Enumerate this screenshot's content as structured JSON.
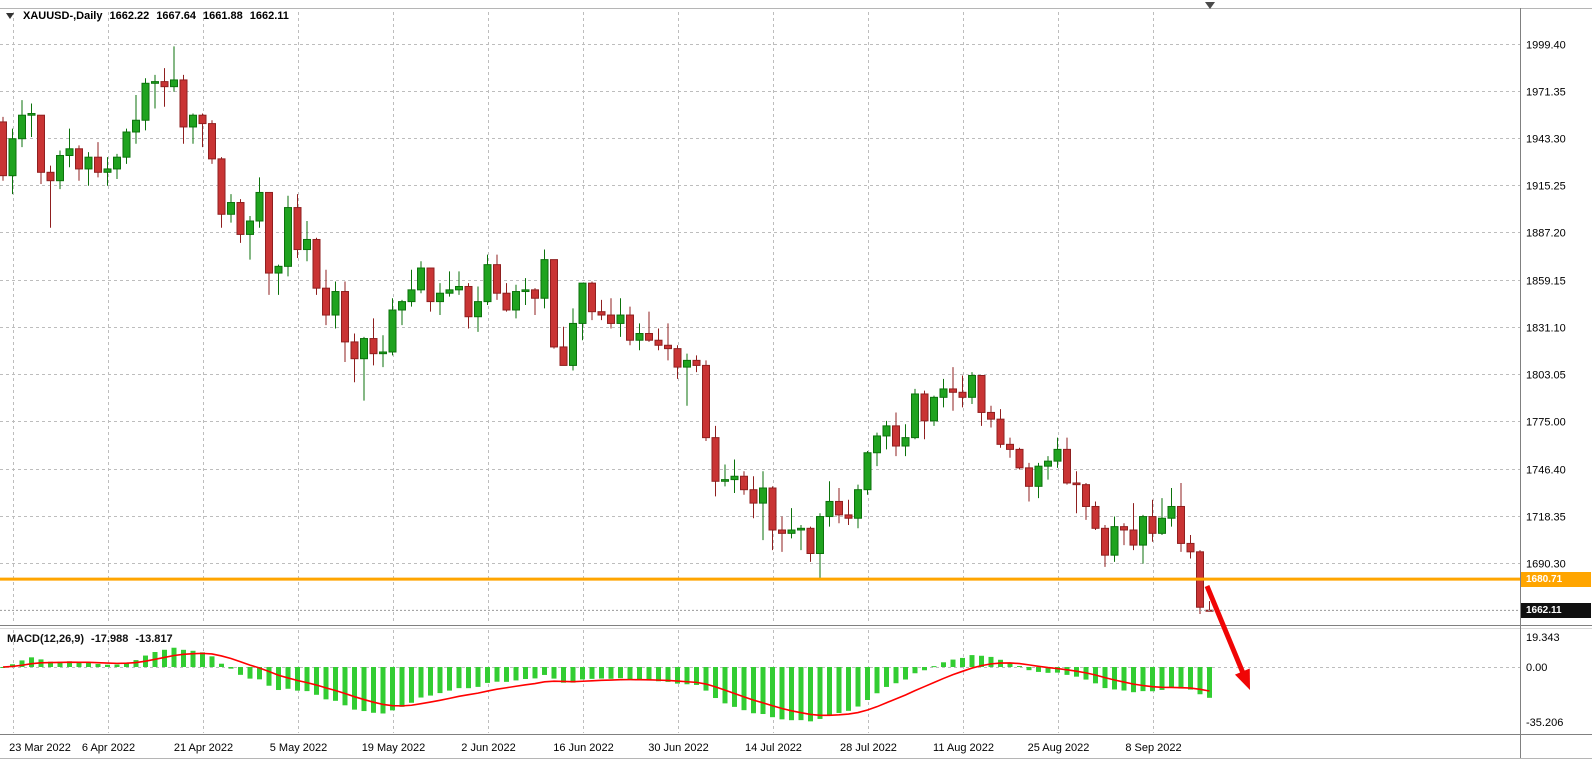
{
  "window": {
    "symbol_label": "XAUUSD-,Daily",
    "ohlc": {
      "open": "1662.22",
      "high": "1667.64",
      "low": "1661.88",
      "close": "1662.11"
    }
  },
  "colors": {
    "bull": "#1fa31f",
    "bull_stroke": "#0b720b",
    "bear": "#c93434",
    "bear_stroke": "#8f1f1f",
    "grid": "#bdbdbd",
    "border": "#808080",
    "macd_histogram": "#32CD32",
    "macd_signal": "#FF0000",
    "hline": "#FFA500",
    "bid_line": "#9a9a9a",
    "arrow": "#F00505"
  },
  "chart_data": {
    "type": "candlestick",
    "symbol": "XAUUSD",
    "timeframe": "Daily",
    "title": "XAUUSD-,Daily 1662.22 1667.64 1661.88 1662.11",
    "price_axis": {
      "labels": [
        "1999.40",
        "1971.35",
        "1943.30",
        "1915.25",
        "1887.20",
        "1859.15",
        "1831.10",
        "1803.05",
        "1775.00",
        "1746.40",
        "1718.35",
        "1690.30"
      ],
      "ylim": [
        1650,
        2010
      ],
      "grid": true
    },
    "x_axis_labels": [
      {
        "label": "23 Mar 2022",
        "date": "2022-03-23"
      },
      {
        "label": "6 Apr 2022",
        "date": "2022-04-06"
      },
      {
        "label": "21 Apr 2022",
        "date": "2022-04-21"
      },
      {
        "label": "5 May 2022",
        "date": "2022-05-05"
      },
      {
        "label": "19 May 2022",
        "date": "2022-05-19"
      },
      {
        "label": "2 Jun 2022",
        "date": "2022-06-02"
      },
      {
        "label": "16 Jun 2022",
        "date": "2022-06-16"
      },
      {
        "label": "30 Jun 2022",
        "date": "2022-06-30"
      },
      {
        "label": "14 Jul 2022",
        "date": "2022-07-14"
      },
      {
        "label": "28 Jul 2022",
        "date": "2022-07-28"
      },
      {
        "label": "11 Aug 2022",
        "date": "2022-08-11"
      },
      {
        "label": "25 Aug 2022",
        "date": "2022-08-25"
      },
      {
        "label": "8 Sep 2022",
        "date": "2022-09-08"
      }
    ],
    "candles": [
      [
        "2022-03-22",
        1953,
        1956,
        1918,
        1921
      ],
      [
        "2022-03-23",
        1921,
        1949,
        1910,
        1943
      ],
      [
        "2022-03-24",
        1943,
        1966,
        1938,
        1957
      ],
      [
        "2022-03-25",
        1957,
        1964,
        1944,
        1958
      ],
      [
        "2022-03-28",
        1957,
        1957,
        1916,
        1923
      ],
      [
        "2022-03-29",
        1923,
        1927,
        1890,
        1918
      ],
      [
        "2022-03-30",
        1918,
        1936,
        1913,
        1933
      ],
      [
        "2022-03-31",
        1933,
        1949,
        1926,
        1937
      ],
      [
        "2022-04-01",
        1937,
        1939,
        1918,
        1925
      ],
      [
        "2022-04-04",
        1925,
        1935,
        1915,
        1932
      ],
      [
        "2022-04-05",
        1932,
        1941,
        1920,
        1923
      ],
      [
        "2022-04-06",
        1923,
        1932,
        1915,
        1925
      ],
      [
        "2022-04-07",
        1925,
        1934,
        1919,
        1932
      ],
      [
        "2022-04-08",
        1932,
        1949,
        1928,
        1947
      ],
      [
        "2022-04-11",
        1947,
        1969,
        1940,
        1954
      ],
      [
        "2022-04-12",
        1954,
        1979,
        1948,
        1976
      ],
      [
        "2022-04-13",
        1976,
        1981,
        1961,
        1977
      ],
      [
        "2022-04-14",
        1977,
        1985,
        1962,
        1974
      ],
      [
        "2022-04-18",
        1974,
        1998,
        1971,
        1978
      ],
      [
        "2022-04-19",
        1978,
        1981,
        1940,
        1950
      ],
      [
        "2022-04-20",
        1950,
        1958,
        1940,
        1957
      ],
      [
        "2022-04-21",
        1957,
        1958,
        1938,
        1952
      ],
      [
        "2022-04-22",
        1952,
        1954,
        1928,
        1931
      ],
      [
        "2022-04-25",
        1931,
        1932,
        1890,
        1898
      ],
      [
        "2022-04-26",
        1898,
        1910,
        1893,
        1905
      ],
      [
        "2022-04-27",
        1905,
        1907,
        1881,
        1886
      ],
      [
        "2022-04-28",
        1886,
        1897,
        1871,
        1894
      ],
      [
        "2022-04-29",
        1894,
        1920,
        1890,
        1911
      ],
      [
        "2022-05-02",
        1911,
        1911,
        1850,
        1863
      ],
      [
        "2022-05-03",
        1863,
        1868,
        1850,
        1867
      ],
      [
        "2022-05-04",
        1867,
        1909,
        1861,
        1902
      ],
      [
        "2022-05-05",
        1902,
        1910,
        1872,
        1877
      ],
      [
        "2022-05-06",
        1877,
        1894,
        1870,
        1883
      ],
      [
        "2022-05-09",
        1883,
        1884,
        1850,
        1854
      ],
      [
        "2022-05-10",
        1854,
        1865,
        1832,
        1838
      ],
      [
        "2022-05-11",
        1838,
        1858,
        1830,
        1852
      ],
      [
        "2022-05-12",
        1852,
        1858,
        1810,
        1822
      ],
      [
        "2022-05-13",
        1822,
        1827,
        1798,
        1812
      ],
      [
        "2022-05-16",
        1812,
        1825,
        1787,
        1824
      ],
      [
        "2022-05-17",
        1824,
        1836,
        1808,
        1815
      ],
      [
        "2022-05-18",
        1815,
        1826,
        1807,
        1816
      ],
      [
        "2022-05-19",
        1816,
        1848,
        1814,
        1841
      ],
      [
        "2022-05-20",
        1841,
        1847,
        1832,
        1846
      ],
      [
        "2022-05-23",
        1846,
        1865,
        1843,
        1853
      ],
      [
        "2022-05-24",
        1853,
        1870,
        1851,
        1866
      ],
      [
        "2022-05-25",
        1866,
        1866,
        1840,
        1846
      ],
      [
        "2022-05-26",
        1846,
        1857,
        1838,
        1851
      ],
      [
        "2022-05-27",
        1851,
        1864,
        1849,
        1853
      ],
      [
        "2022-05-30",
        1853,
        1864,
        1850,
        1855
      ],
      [
        "2022-05-31",
        1855,
        1857,
        1830,
        1837
      ],
      [
        "2022-06-01",
        1837,
        1855,
        1828,
        1846
      ],
      [
        "2022-06-02",
        1846,
        1874,
        1844,
        1868
      ],
      [
        "2022-06-03",
        1868,
        1874,
        1847,
        1851
      ],
      [
        "2022-06-06",
        1851,
        1857,
        1840,
        1841
      ],
      [
        "2022-06-07",
        1841,
        1856,
        1836,
        1852
      ],
      [
        "2022-06-08",
        1852,
        1860,
        1844,
        1853
      ],
      [
        "2022-06-09",
        1853,
        1854,
        1838,
        1848
      ],
      [
        "2022-06-10",
        1848,
        1877,
        1842,
        1871
      ],
      [
        "2022-06-13",
        1871,
        1871,
        1818,
        1819
      ],
      [
        "2022-06-14",
        1819,
        1831,
        1808,
        1808
      ],
      [
        "2022-06-15",
        1808,
        1842,
        1805,
        1833
      ],
      [
        "2022-06-16",
        1833,
        1857,
        1823,
        1857
      ],
      [
        "2022-06-17",
        1857,
        1858,
        1835,
        1840
      ],
      [
        "2022-06-20",
        1840,
        1847,
        1835,
        1838
      ],
      [
        "2022-06-21",
        1838,
        1848,
        1830,
        1833
      ],
      [
        "2022-06-22",
        1833,
        1848,
        1825,
        1838
      ],
      [
        "2022-06-23",
        1838,
        1843,
        1820,
        1823
      ],
      [
        "2022-06-24",
        1823,
        1833,
        1817,
        1827
      ],
      [
        "2022-06-27",
        1827,
        1840,
        1822,
        1823
      ],
      [
        "2022-06-28",
        1823,
        1830,
        1817,
        1820
      ],
      [
        "2022-06-29",
        1820,
        1833,
        1811,
        1818
      ],
      [
        "2022-06-30",
        1818,
        1820,
        1800,
        1807
      ],
      [
        "2022-07-01",
        1807,
        1815,
        1784,
        1811
      ],
      [
        "2022-07-04",
        1811,
        1814,
        1804,
        1808
      ],
      [
        "2022-07-05",
        1808,
        1811,
        1763,
        1765
      ],
      [
        "2022-07-06",
        1765,
        1772,
        1730,
        1739
      ],
      [
        "2022-07-07",
        1739,
        1749,
        1736,
        1740
      ],
      [
        "2022-07-08",
        1740,
        1752,
        1732,
        1742
      ],
      [
        "2022-07-11",
        1742,
        1745,
        1731,
        1734
      ],
      [
        "2022-07-12",
        1734,
        1742,
        1717,
        1726
      ],
      [
        "2022-07-13",
        1726,
        1745,
        1704,
        1735
      ],
      [
        "2022-07-14",
        1735,
        1736,
        1698,
        1710
      ],
      [
        "2022-07-15",
        1710,
        1718,
        1697,
        1708
      ],
      [
        "2022-07-18",
        1708,
        1723,
        1705,
        1710
      ],
      [
        "2022-07-19",
        1710,
        1713,
        1698,
        1711
      ],
      [
        "2022-07-20",
        1711,
        1712,
        1691,
        1696
      ],
      [
        "2022-07-21",
        1696,
        1720,
        1680,
        1718
      ],
      [
        "2022-07-22",
        1718,
        1739,
        1712,
        1727
      ],
      [
        "2022-07-25",
        1727,
        1735,
        1714,
        1719
      ],
      [
        "2022-07-26",
        1719,
        1728,
        1713,
        1717
      ],
      [
        "2022-07-27",
        1717,
        1737,
        1711,
        1734
      ],
      [
        "2022-07-28",
        1734,
        1757,
        1731,
        1756
      ],
      [
        "2022-07-29",
        1756,
        1768,
        1748,
        1766
      ],
      [
        "2022-08-01",
        1766,
        1775,
        1758,
        1772
      ],
      [
        "2022-08-02",
        1772,
        1780,
        1754,
        1760
      ],
      [
        "2022-08-03",
        1760,
        1773,
        1754,
        1765
      ],
      [
        "2022-08-04",
        1765,
        1794,
        1764,
        1791
      ],
      [
        "2022-08-05",
        1791,
        1793,
        1764,
        1775
      ],
      [
        "2022-08-08",
        1775,
        1790,
        1772,
        1789
      ],
      [
        "2022-08-09",
        1789,
        1800,
        1783,
        1794
      ],
      [
        "2022-08-10",
        1794,
        1807,
        1781,
        1792
      ],
      [
        "2022-08-11",
        1792,
        1802,
        1783,
        1789
      ],
      [
        "2022-08-12",
        1789,
        1804,
        1785,
        1802
      ],
      [
        "2022-08-15",
        1802,
        1802,
        1772,
        1780
      ],
      [
        "2022-08-16",
        1780,
        1784,
        1771,
        1776
      ],
      [
        "2022-08-17",
        1776,
        1782,
        1759,
        1761
      ],
      [
        "2022-08-18",
        1761,
        1765,
        1753,
        1758
      ],
      [
        "2022-08-19",
        1758,
        1759,
        1746,
        1747
      ],
      [
        "2022-08-22",
        1747,
        1750,
        1727,
        1736
      ],
      [
        "2022-08-23",
        1736,
        1750,
        1729,
        1748
      ],
      [
        "2022-08-24",
        1748,
        1754,
        1740,
        1751
      ],
      [
        "2022-08-25",
        1751,
        1765,
        1747,
        1758
      ],
      [
        "2022-08-26",
        1758,
        1765,
        1737,
        1738
      ],
      [
        "2022-08-29",
        1738,
        1745,
        1720,
        1737
      ],
      [
        "2022-08-30",
        1737,
        1738,
        1716,
        1724
      ],
      [
        "2022-08-31",
        1724,
        1727,
        1710,
        1711
      ],
      [
        "2022-09-01",
        1711,
        1713,
        1688,
        1695
      ],
      [
        "2022-09-02",
        1695,
        1718,
        1691,
        1712
      ],
      [
        "2022-09-05",
        1712,
        1714,
        1701,
        1710
      ],
      [
        "2022-09-06",
        1710,
        1726,
        1698,
        1701
      ],
      [
        "2022-09-07",
        1701,
        1719,
        1690,
        1718
      ],
      [
        "2022-09-08",
        1718,
        1728,
        1703,
        1708
      ],
      [
        "2022-09-09",
        1708,
        1729,
        1707,
        1717
      ],
      [
        "2022-09-12",
        1717,
        1735,
        1712,
        1724
      ],
      [
        "2022-09-13",
        1724,
        1738,
        1697,
        1702
      ],
      [
        "2022-09-14",
        1702,
        1707,
        1693,
        1697
      ],
      [
        "2022-09-15",
        1697,
        1698,
        1660,
        1664
      ],
      [
        "2022-09-16",
        1662.22,
        1667.64,
        1661.88,
        1662.11
      ]
    ],
    "horizontal_line": {
      "price": 1680.71,
      "label": "1680.71",
      "color": "#FFA500"
    },
    "bid": {
      "price": 1662.11,
      "label": "1662.11"
    },
    "macd": {
      "label": "MACD(12,26,9)",
      "params": [
        12,
        26,
        9
      ],
      "main_value": "-17.988",
      "signal_value": "-13.817",
      "scale_labels": [
        "19.343",
        "0.00",
        "-35.206"
      ],
      "ylim": [
        -43,
        24
      ]
    },
    "annotation_arrow": {
      "from": [
        1207,
        586
      ],
      "to": [
        1250,
        690
      ],
      "color": "#F00505"
    }
  }
}
